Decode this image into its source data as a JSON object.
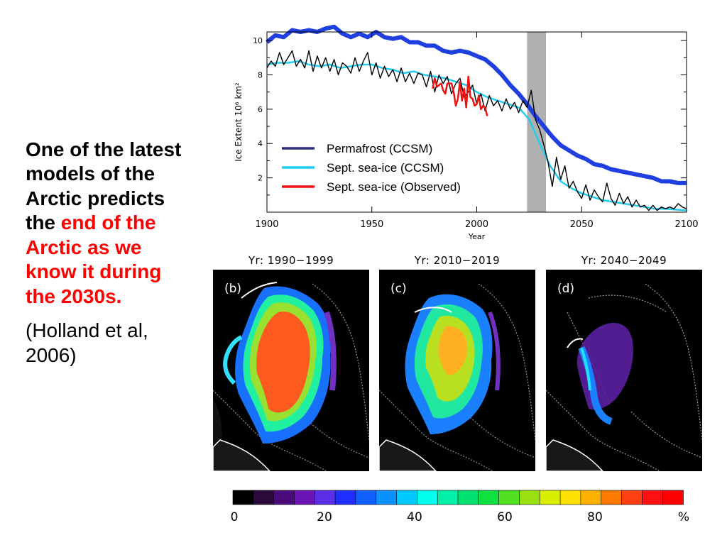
{
  "text": {
    "headline": "One of the latest models of the Arctic predicts the",
    "highlight": "end of the Arctic as we know it during the 2030s.",
    "citation": "(Holland et al, 2006)"
  },
  "chart_data": [
    {
      "type": "line",
      "title": "",
      "xlabel": "Year",
      "ylabel": "Ice Extent 10⁶ km²",
      "xlim": [
        1900,
        2100
      ],
      "ylim": [
        0,
        10.5
      ],
      "x_ticks": [
        "1900",
        "1950",
        "2000",
        "2050",
        "2100"
      ],
      "y_ticks": [
        "2",
        "4",
        "6",
        "8",
        "10"
      ],
      "legend_position": "center",
      "shaded_band": {
        "x": [
          2024,
          2033
        ],
        "color": "#b0b0b0"
      },
      "series": [
        {
          "name": "Permafrost (CCSM)",
          "color": "#1f3fe0",
          "x": [
            1900,
            1904,
            1908,
            1912,
            1916,
            1920,
            1924,
            1928,
            1932,
            1936,
            1940,
            1944,
            1948,
            1952,
            1956,
            1960,
            1964,
            1968,
            1972,
            1976,
            1980,
            1984,
            1988,
            1992,
            1996,
            2000,
            2004,
            2008,
            2012,
            2016,
            2020,
            2024,
            2028,
            2032,
            2036,
            2040,
            2044,
            2048,
            2052,
            2056,
            2060,
            2064,
            2068,
            2072,
            2076,
            2080,
            2084,
            2088,
            2092,
            2096,
            2100
          ],
          "y": [
            9.9,
            10.3,
            10.2,
            10.6,
            10.5,
            10.6,
            10.5,
            10.7,
            10.8,
            10.4,
            10.2,
            10.4,
            10.2,
            10.5,
            10.2,
            10.1,
            10.2,
            9.9,
            9.9,
            9.7,
            9.7,
            9.4,
            9.3,
            9.4,
            9.3,
            9.1,
            8.9,
            8.5,
            8.0,
            7.4,
            6.9,
            6.3,
            5.6,
            5.0,
            4.4,
            3.9,
            3.6,
            3.3,
            3.1,
            2.8,
            2.7,
            2.5,
            2.4,
            2.3,
            2.2,
            2.1,
            2.0,
            1.8,
            1.8,
            1.7,
            1.7
          ]
        },
        {
          "name": "Sept. sea-ice (CCSM)",
          "color": "#22ccee",
          "x": [
            1900,
            1905,
            1910,
            1915,
            1920,
            1925,
            1930,
            1935,
            1940,
            1945,
            1950,
            1955,
            1960,
            1965,
            1970,
            1975,
            1980,
            1985,
            1990,
            1995,
            2000,
            2005,
            2010,
            2015,
            2020,
            2025,
            2030,
            2035,
            2040,
            2045,
            2050,
            2055,
            2060,
            2065,
            2070,
            2075,
            2080,
            2085,
            2090,
            2095,
            2100
          ],
          "y": [
            8.6,
            8.7,
            8.7,
            8.8,
            8.6,
            8.5,
            8.6,
            8.4,
            8.5,
            8.6,
            8.6,
            8.4,
            8.3,
            8.1,
            8.2,
            8.0,
            7.9,
            7.8,
            7.6,
            7.4,
            7.0,
            6.7,
            6.5,
            6.3,
            6.1,
            5.4,
            4.0,
            2.7,
            1.8,
            1.4,
            1.1,
            0.9,
            0.7,
            0.6,
            0.5,
            0.4,
            0.3,
            0.2,
            0.2,
            0.15,
            0.1
          ]
        },
        {
          "name": "Sept. sea-ice (Observed)",
          "color": "#ee1111",
          "x": [
            1979,
            1980,
            1981,
            1982,
            1983,
            1984,
            1985,
            1986,
            1987,
            1988,
            1989,
            1990,
            1991,
            1992,
            1993,
            1994,
            1995,
            1996,
            1997,
            1998,
            1999,
            2000,
            2001,
            2002,
            2003,
            2004,
            2005
          ],
          "y": [
            7.2,
            7.8,
            7.3,
            7.4,
            7.5,
            7.1,
            6.9,
            7.5,
            7.5,
            7.5,
            7.0,
            6.2,
            6.6,
            7.6,
            6.5,
            7.2,
            6.1,
            7.9,
            6.7,
            6.6,
            6.2,
            6.3,
            6.8,
            6.0,
            6.2,
            6.1,
            5.6
          ]
        },
        {
          "name": "",
          "color": "#000000",
          "x": [
            1900,
            1902,
            1904,
            1906,
            1908,
            1910,
            1912,
            1914,
            1916,
            1918,
            1920,
            1922,
            1924,
            1926,
            1928,
            1930,
            1932,
            1934,
            1936,
            1938,
            1940,
            1942,
            1944,
            1946,
            1948,
            1950,
            1952,
            1954,
            1956,
            1958,
            1960,
            1962,
            1964,
            1966,
            1968,
            1970,
            1972,
            1974,
            1976,
            1978,
            1980,
            1982,
            1984,
            1986,
            1988,
            1990,
            1992,
            1994,
            1996,
            1998,
            2000,
            2002,
            2004,
            2006,
            2008,
            2010,
            2012,
            2014,
            2016,
            2018,
            2020,
            2022,
            2024,
            2026,
            2028,
            2030,
            2032,
            2034,
            2036,
            2038,
            2040,
            2042,
            2044,
            2046,
            2048,
            2050,
            2052,
            2054,
            2056,
            2058,
            2060,
            2062,
            2064,
            2066,
            2068,
            2070,
            2072,
            2074,
            2076,
            2078,
            2080,
            2082,
            2084,
            2086,
            2088,
            2090,
            2092,
            2094,
            2096,
            2098,
            2100
          ],
          "y": [
            8.4,
            8.8,
            8.5,
            9.3,
            8.6,
            9.0,
            9.4,
            8.5,
            8.9,
            8.4,
            9.4,
            8.2,
            9.1,
            8.4,
            9.0,
            8.2,
            8.9,
            8.0,
            8.7,
            8.5,
            8.1,
            9.0,
            8.2,
            8.8,
            9.3,
            8.0,
            8.7,
            7.8,
            8.5,
            7.9,
            8.3,
            7.6,
            8.4,
            7.6,
            8.1,
            7.5,
            8.1,
            8.0,
            7.3,
            8.2,
            7.0,
            8.0,
            7.5,
            7.9,
            6.9,
            7.5,
            7.8,
            6.7,
            7.0,
            7.4,
            6.3,
            6.9,
            5.9,
            6.8,
            6.2,
            6.5,
            5.9,
            6.6,
            6.0,
            6.4,
            5.8,
            6.5,
            6.1,
            7.1,
            5.4,
            4.8,
            3.9,
            2.9,
            1.5,
            3.2,
            1.9,
            2.7,
            1.4,
            1.8,
            1.2,
            0.8,
            1.6,
            0.7,
            1.3,
            0.9,
            0.6,
            1.7,
            0.8,
            0.4,
            1.1,
            0.5,
            0.9,
            0.3,
            0.7,
            0.3,
            0.4,
            0.1,
            0.4,
            0.1,
            0.3,
            0.2,
            0.3,
            0.2,
            0.5,
            0.3,
            0.2
          ]
        }
      ],
      "legend": [
        {
          "label": "Permafrost (CCSM)",
          "color": "#2a2f80"
        },
        {
          "label": "Sept. sea-ice (CCSM)",
          "color": "#22ccee"
        },
        {
          "label": "Sept. sea-ice (Observed)",
          "color": "#ee1111"
        }
      ]
    },
    {
      "type": "heatmap",
      "unit": "%",
      "colorbar_ticks": [
        "0",
        "20",
        "40",
        "60",
        "80",
        "%"
      ],
      "colorbar_colors": [
        "#000000",
        "#2a0a3a",
        "#4a0a7a",
        "#6a14b4",
        "#5a2ee6",
        "#1f2fff",
        "#1060ff",
        "#0a90ff",
        "#00c8ff",
        "#00ffee",
        "#00f0a8",
        "#00e070",
        "#10e040",
        "#50e020",
        "#98e010",
        "#d8f000",
        "#ffe000",
        "#ffb000",
        "#ff7800",
        "#ff4010",
        "#ff1010",
        "#ff0000"
      ],
      "panels": [
        {
          "label": "(b)",
          "title": "Yr: 1990−1999"
        },
        {
          "label": "(c)",
          "title": "Yr: 2010−2019"
        },
        {
          "label": "(d)",
          "title": "Yr: 2040−2049"
        }
      ]
    }
  ]
}
